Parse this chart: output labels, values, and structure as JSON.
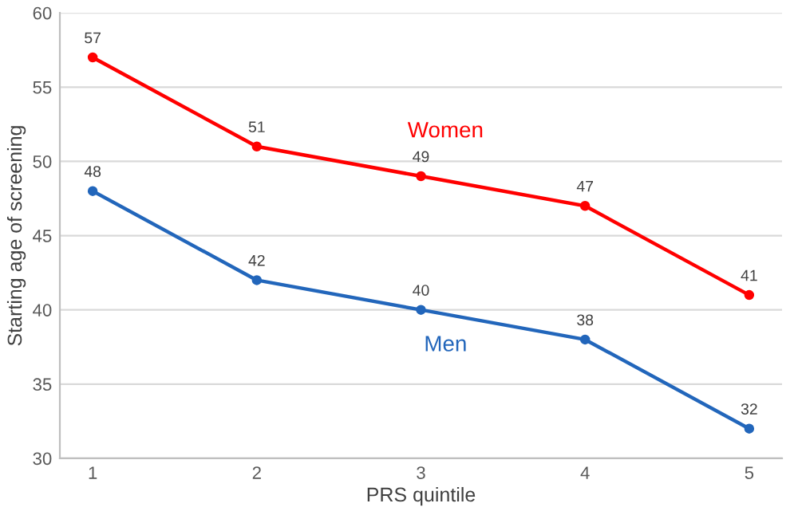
{
  "chart_data": {
    "type": "line",
    "xlabel": "PRS quintile",
    "ylabel": "Starting age of screening",
    "categories": [
      "1",
      "2",
      "3",
      "4",
      "5"
    ],
    "series": [
      {
        "name": "Women",
        "color": "#ff0000",
        "values": [
          57,
          51,
          49,
          47,
          41
        ]
      },
      {
        "name": "Men",
        "color": "#2266bb",
        "values": [
          48,
          42,
          40,
          38,
          32
        ]
      }
    ],
    "ylim": [
      30,
      60
    ],
    "yticks": [
      30,
      35,
      40,
      45,
      50,
      55,
      60
    ],
    "grid": "y",
    "data_labels": true,
    "marker": "circle",
    "legend": false
  }
}
